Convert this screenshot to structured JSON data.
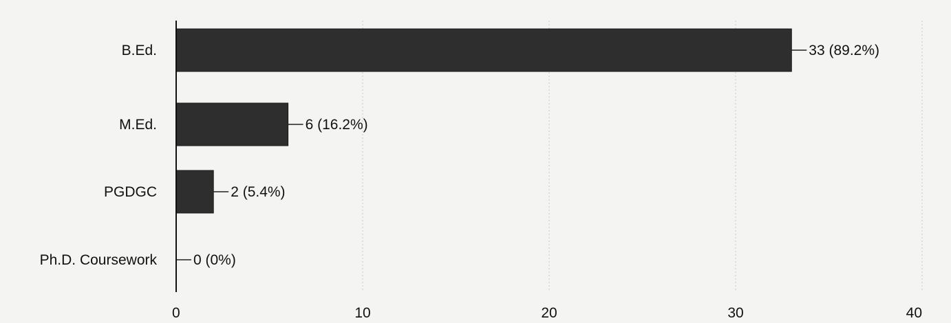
{
  "chart_data": {
    "type": "bar",
    "orientation": "horizontal",
    "categories": [
      "B.Ed.",
      "M.Ed.",
      "PGDGC",
      "Ph.D. Coursework"
    ],
    "values": [
      33,
      6,
      2,
      0
    ],
    "data_labels": [
      "33 (89.2%)",
      "6 (16.2%)",
      "2 (5.4%)",
      "0 (0%)"
    ],
    "x_ticks": [
      "0",
      "10",
      "20",
      "30",
      "40"
    ],
    "xlim": [
      0,
      40
    ],
    "grid": true,
    "bar_color": "#2e2e2e"
  }
}
